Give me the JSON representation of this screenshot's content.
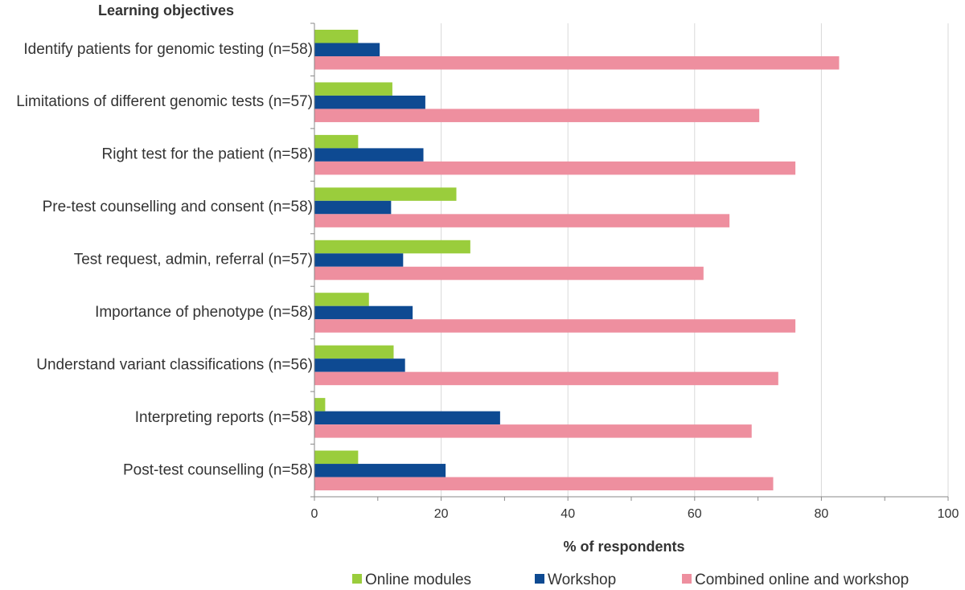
{
  "chart_data": {
    "type": "bar",
    "orientation": "horizontal",
    "title": "Learning objectives",
    "xlabel": "% of respondents",
    "ylabel": "",
    "xlim": [
      0,
      100
    ],
    "xticks": [
      0,
      20,
      40,
      60,
      80,
      100
    ],
    "grid": true,
    "legend_position": "bottom",
    "categories": [
      "Identify patients for genomic testing (n=58)",
      "Limitations of different genomic tests (n=57)",
      "Right test for the patient (n=58)",
      "Pre-test counselling and consent (n=58)",
      "Test request, admin, referral (n=57)",
      "Importance of phenotype (n=58)",
      "Understand variant classifications (n=56)",
      "Interpreting reports (n=58)",
      "Post-test counselling (n=58)"
    ],
    "series": [
      {
        "name": "Online modules",
        "color": "#9acd3c",
        "values": [
          6.9,
          12.3,
          6.9,
          22.4,
          24.6,
          8.6,
          12.5,
          1.7,
          6.9
        ]
      },
      {
        "name": "Workshop",
        "color": "#0e4a92",
        "values": [
          10.3,
          17.5,
          17.2,
          12.1,
          14.0,
          15.5,
          14.3,
          29.3,
          20.7
        ]
      },
      {
        "name": "Combined online and workshop",
        "color": "#ee8f9f",
        "values": [
          82.8,
          70.2,
          75.9,
          65.5,
          61.4,
          75.9,
          73.2,
          69.0,
          72.4
        ]
      }
    ]
  }
}
